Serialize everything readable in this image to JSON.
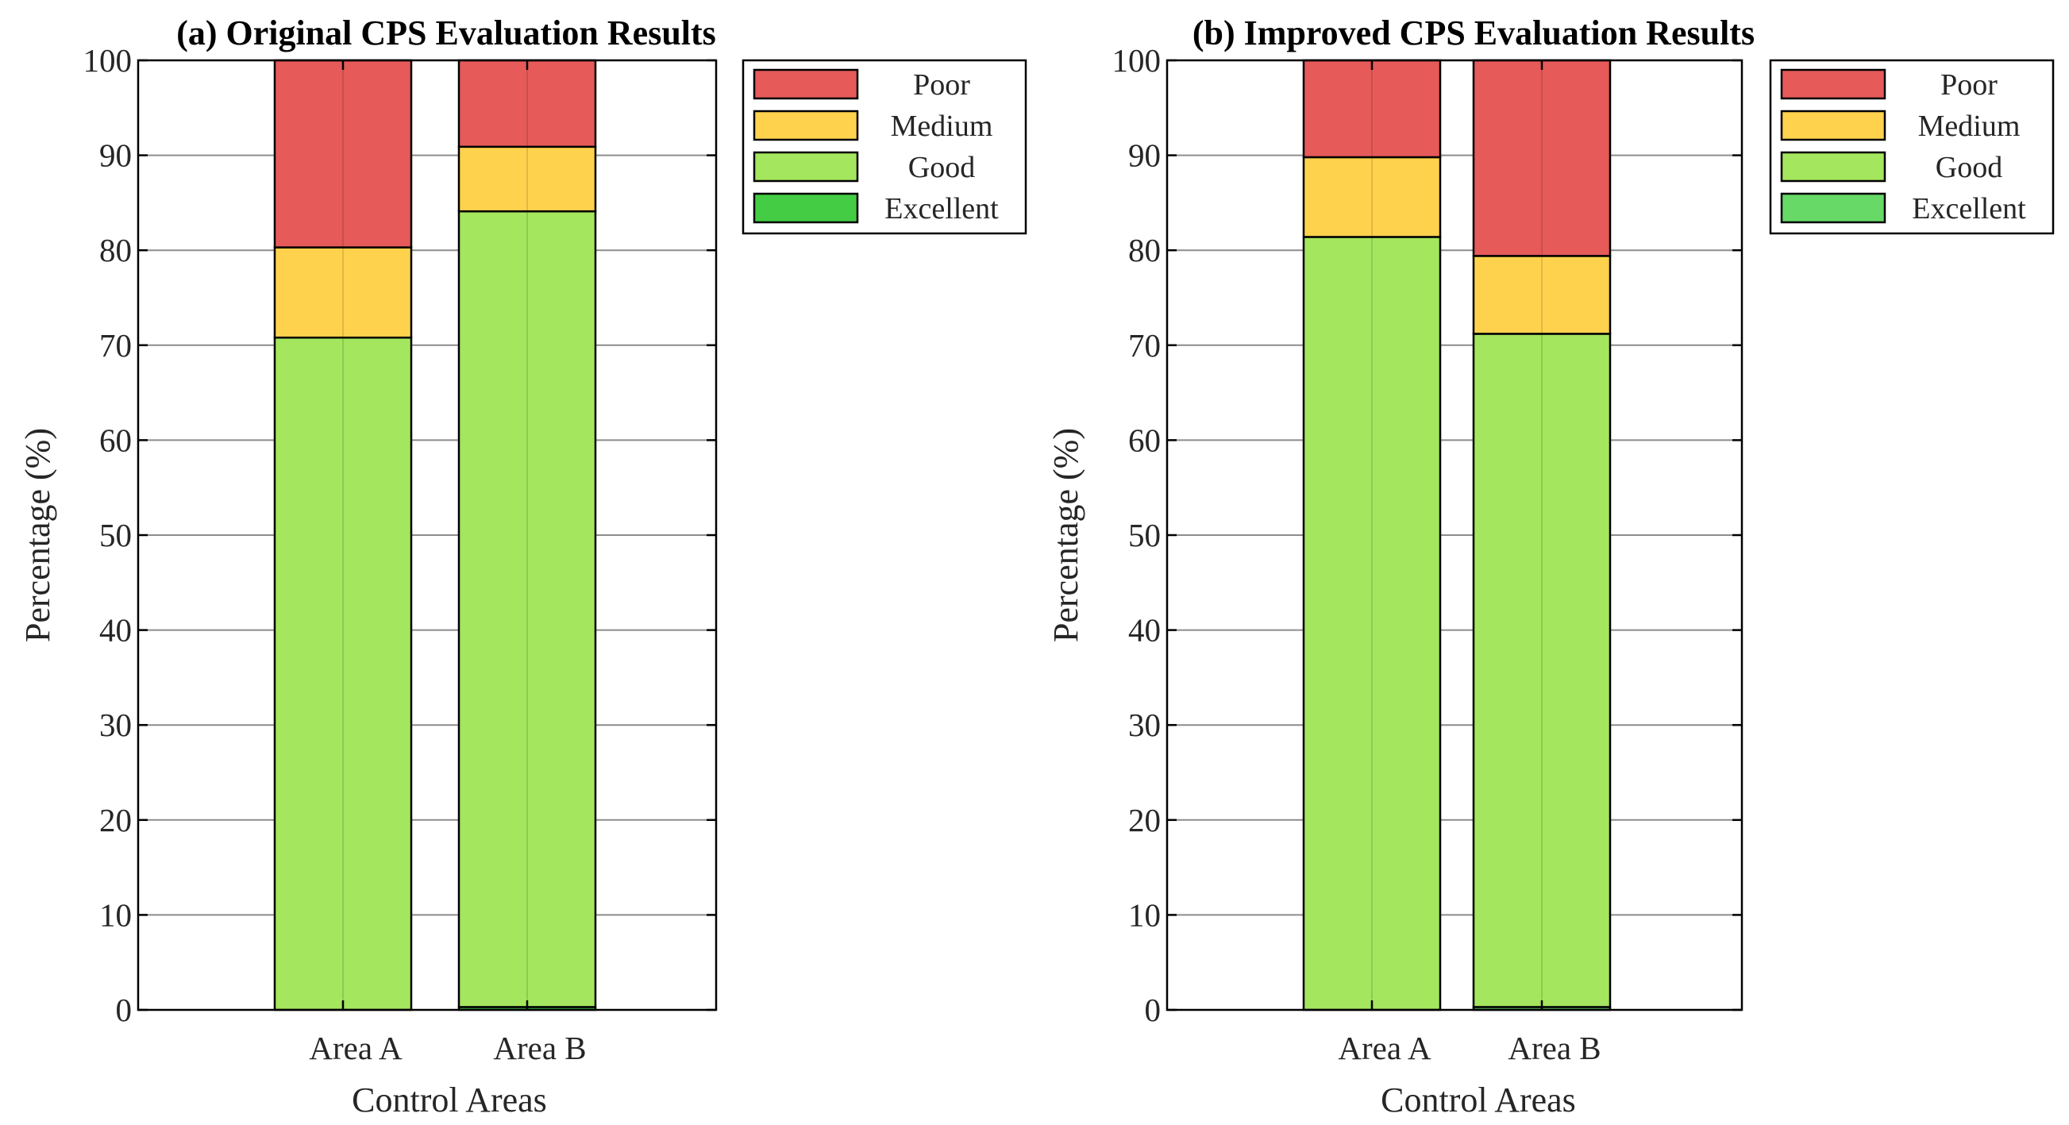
{
  "chart_data": [
    {
      "type": "bar",
      "stacked": true,
      "title": "(a) Original CPS Evaluation Results",
      "xlabel": "Control Areas",
      "ylabel": "Percentage (%)",
      "categories": [
        "Area A",
        "Area B"
      ],
      "ylim": [
        0,
        100
      ],
      "yticks": [
        "0",
        "10",
        "20",
        "30",
        "40",
        "50",
        "60",
        "70",
        "80",
        "90",
        "100"
      ],
      "grid": true,
      "legend_position": "outside-top-right",
      "series": [
        {
          "name": "Excellent",
          "color": "#44cc44",
          "values": [
            0.0,
            0.3
          ]
        },
        {
          "name": "Good",
          "color": "#a4e65e",
          "values": [
            70.8,
            83.8
          ]
        },
        {
          "name": "Medium",
          "color": "#ffd24d",
          "values": [
            9.5,
            6.8
          ]
        },
        {
          "name": "Poor",
          "color": "#e65a5a",
          "values": [
            19.7,
            9.1
          ]
        }
      ]
    },
    {
      "type": "bar",
      "stacked": true,
      "title": "(b) Improved CPS Evaluation Results",
      "xlabel": "Control Areas",
      "ylabel": "Percentage (%)",
      "categories": [
        "Area A",
        "Area B"
      ],
      "ylim": [
        0,
        100
      ],
      "yticks": [
        "0",
        "10",
        "20",
        "30",
        "40",
        "50",
        "60",
        "70",
        "80",
        "90",
        "100"
      ],
      "grid": true,
      "legend_position": "outside-top-right",
      "series": [
        {
          "name": "Excellent",
          "color": "#66d966",
          "values": [
            0.0,
            0.3
          ]
        },
        {
          "name": "Good",
          "color": "#a4e65e",
          "values": [
            81.4,
            70.9
          ]
        },
        {
          "name": "Medium",
          "color": "#ffd24d",
          "values": [
            8.4,
            8.2
          ]
        },
        {
          "name": "Poor",
          "color": "#e65a5a",
          "values": [
            10.2,
            20.6
          ]
        }
      ]
    }
  ]
}
